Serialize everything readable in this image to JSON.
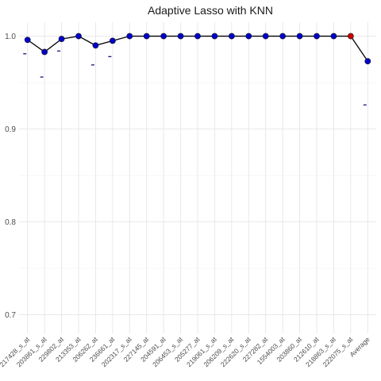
{
  "chart_data": {
    "type": "line",
    "title": "Adaptive Lasso with KNN",
    "xlabel": "",
    "ylabel": "",
    "ylim": [
      0.68,
      1.015
    ],
    "yticks": [
      0.7,
      0.8,
      0.9,
      1.0
    ],
    "ytick_labels": [
      "0.7",
      "0.8",
      "0.9",
      "1.0"
    ],
    "grid": true,
    "categories": [
      "217428_s_at",
      "203861_s_at",
      "229802_at",
      "213353_at",
      "206262_at",
      "236661_at",
      "202317_s_at",
      "227145_at",
      "204591_at",
      "206453_s_at",
      "205277_at",
      "219061_s_at",
      "206209_s_at",
      "222620_s_at",
      "227282_at",
      "1554003_at",
      "203860_at",
      "212610_at",
      "218863_s_at",
      "222075_s_at",
      "Average"
    ],
    "series": [
      {
        "values": [
          0.996,
          0.983,
          0.997,
          1.0,
          0.99,
          0.995,
          1.0,
          1.0,
          1.0,
          1.0,
          1.0,
          1.0,
          1.0,
          1.0,
          1.0,
          1.0,
          1.0,
          1.0,
          1.0,
          1.0,
          0.973
        ],
        "lower": [
          0.981,
          0.956,
          0.984,
          null,
          0.969,
          0.978,
          null,
          null,
          null,
          null,
          null,
          null,
          null,
          null,
          null,
          null,
          null,
          null,
          null,
          null,
          0.926
        ],
        "point_colors": [
          "#0000cc",
          "#0000cc",
          "#0000cc",
          "#0000cc",
          "#0000cc",
          "#0000cc",
          "#0000cc",
          "#0000cc",
          "#0000cc",
          "#0000cc",
          "#0000cc",
          "#0000cc",
          "#0000cc",
          "#0000cc",
          "#0000cc",
          "#0000cc",
          "#0000cc",
          "#0000cc",
          "#0000cc",
          "#cc0000",
          "#0000cc"
        ]
      }
    ],
    "colors": {
      "line": "#000000",
      "point": "#0000cc",
      "highlight": "#cc0000",
      "interval": "#00007a"
    }
  }
}
